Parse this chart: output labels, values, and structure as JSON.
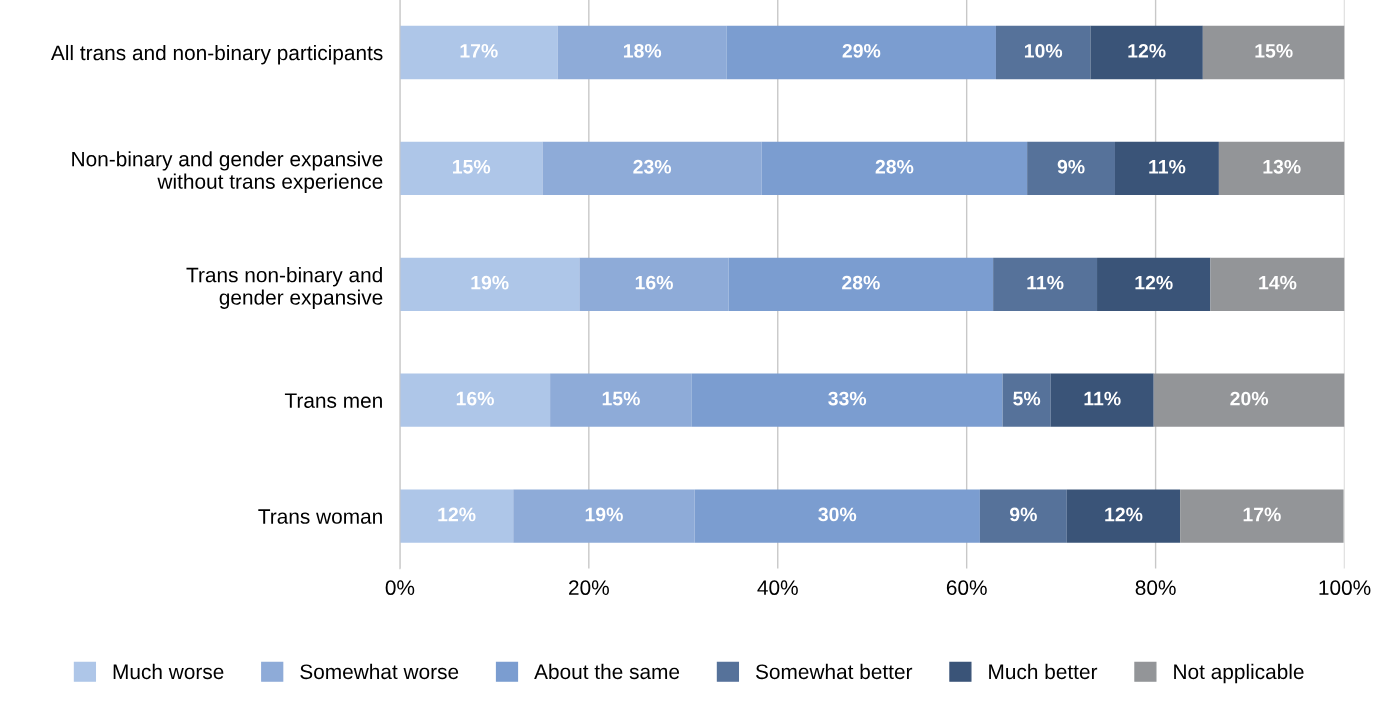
{
  "chart_data": {
    "type": "bar",
    "orientation": "horizontal",
    "stacked": true,
    "categories": [
      "All trans and non-binary participants",
      "Non-binary and gender expansive\nwithout trans experience",
      "Trans non-binary and\ngender expansive",
      "Trans men",
      "Trans woman"
    ],
    "series": [
      {
        "name": "Much worse",
        "color": "#aec6e8",
        "values": [
          16.7,
          15.1,
          19.0,
          15.9,
          12.0
        ],
        "value_labels": [
          "17%",
          "15%",
          "19%",
          "16%",
          "12%"
        ]
      },
      {
        "name": "Somewhat worse",
        "color": "#8eabd8",
        "values": [
          17.9,
          23.2,
          15.8,
          15.0,
          19.2
        ],
        "value_labels": [
          "18%",
          "23%",
          "16%",
          "15%",
          "19%"
        ]
      },
      {
        "name": "About the same",
        "color": "#7b9dd0",
        "values": [
          28.5,
          28.1,
          28.0,
          32.9,
          30.2
        ],
        "value_labels": [
          "29%",
          "28%",
          "28%",
          "33%",
          "30%"
        ]
      },
      {
        "name": "Somewhat better",
        "color": "#56729a",
        "values": [
          10.0,
          9.3,
          11.0,
          5.1,
          9.2
        ],
        "value_labels": [
          "10%",
          "9%",
          "11%",
          "5%",
          "9%"
        ]
      },
      {
        "name": "Much better",
        "color": "#3a5478",
        "values": [
          11.9,
          11.0,
          12.0,
          10.9,
          12.0
        ],
        "value_labels": [
          "12%",
          "11%",
          "12%",
          "11%",
          "12%"
        ]
      },
      {
        "name": "Not applicable",
        "color": "#939598",
        "values": [
          15.0,
          13.3,
          14.2,
          20.2,
          17.3
        ],
        "value_labels": [
          "15%",
          "13%",
          "14%",
          "20%",
          "17%"
        ]
      }
    ],
    "xlim": [
      0,
      100
    ],
    "xticks": [
      {
        "value": 0,
        "label": "0%"
      },
      {
        "value": 20,
        "label": "20%"
      },
      {
        "value": 40,
        "label": "40%"
      },
      {
        "value": 60,
        "label": "60%"
      },
      {
        "value": 80,
        "label": "80%"
      },
      {
        "value": 100,
        "label": "100%"
      }
    ],
    "grid": "x",
    "legend": "bottom"
  }
}
